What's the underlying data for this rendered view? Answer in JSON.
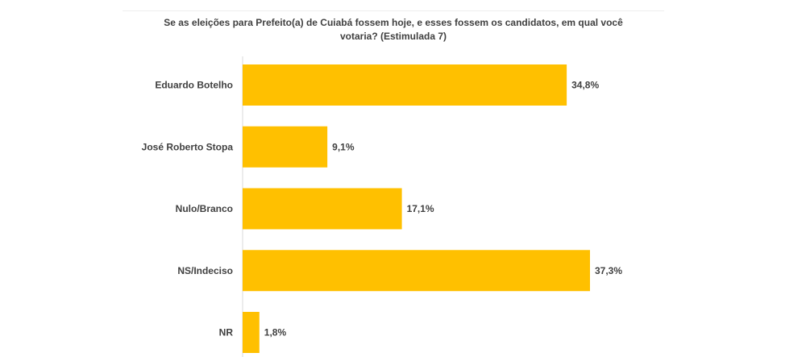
{
  "chart_data": {
    "type": "bar",
    "orientation": "horizontal",
    "title_line1": "Se as eleições para Prefeito(a) de Cuiabá fossem hoje, e esses fossem os candidatos, em qual você",
    "title_line2": "votaria? (Estimulada 7)",
    "categories": [
      "Eduardo Botelho",
      "José Roberto Stopa",
      "Nulo/Branco",
      "NS/Indeciso",
      "NR"
    ],
    "values": [
      34.8,
      9.1,
      17.1,
      37.3,
      1.8
    ],
    "value_labels": [
      "34,8%",
      "9,1%",
      "17,1%",
      "37,3%",
      "1,8%"
    ],
    "xlim": [
      0,
      40
    ],
    "grid": false,
    "legend": "none",
    "bar_color": "#FFC000"
  }
}
